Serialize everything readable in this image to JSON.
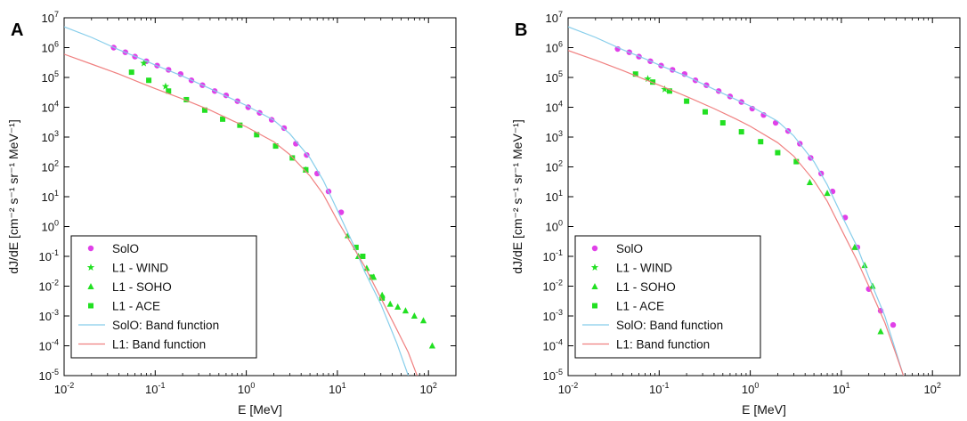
{
  "chart_data": [
    {
      "type": "scatter",
      "panel_label": "A",
      "xlabel": "E [MeV]",
      "ylabel": "dJ/dE [cm⁻² s⁻¹ sr⁻¹ MeV⁻¹]",
      "x_scale": "log",
      "y_scale": "log",
      "xlim": [
        0.01,
        200
      ],
      "ylim": [
        1e-05,
        10000000.0
      ],
      "x_ticks": [
        {
          "v": 0.01,
          "b": "10",
          "e": "-2"
        },
        {
          "v": 0.1,
          "b": "10",
          "e": "-1"
        },
        {
          "v": 1,
          "b": "10",
          "e": "0"
        },
        {
          "v": 10,
          "b": "10",
          "e": "1"
        },
        {
          "v": 100,
          "b": "10",
          "e": "2"
        }
      ],
      "y_ticks": [
        {
          "v": 1e-05,
          "b": "10",
          "e": "-5"
        },
        {
          "v": 0.0001,
          "b": "10",
          "e": "-4"
        },
        {
          "v": 0.001,
          "b": "10",
          "e": "-3"
        },
        {
          "v": 0.01,
          "b": "10",
          "e": "-2"
        },
        {
          "v": 0.1,
          "b": "10",
          "e": "-1"
        },
        {
          "v": 1,
          "b": "10",
          "e": "0"
        },
        {
          "v": 10,
          "b": "10",
          "e": "1"
        },
        {
          "v": 100,
          "b": "10",
          "e": "2"
        },
        {
          "v": 1000.0,
          "b": "10",
          "e": "3"
        },
        {
          "v": 10000.0,
          "b": "10",
          "e": "4"
        },
        {
          "v": 100000.0,
          "b": "10",
          "e": "5"
        },
        {
          "v": 1000000.0,
          "b": "10",
          "e": "6"
        },
        {
          "v": 10000000.0,
          "b": "10",
          "e": "7"
        }
      ],
      "grid": false,
      "legend_position": "bottom-left",
      "series": [
        {
          "name": "SolO",
          "marker": "circle",
          "color": "#e040e8",
          "x": [
            0.035,
            0.047,
            0.06,
            0.08,
            0.105,
            0.14,
            0.19,
            0.25,
            0.33,
            0.45,
            0.6,
            0.8,
            1.05,
            1.4,
            1.9,
            2.6,
            3.5,
            4.6,
            6.0,
            8.0,
            11.0
          ],
          "y": [
            1000000.0,
            700000.0,
            500000.0,
            350000.0,
            250000.0,
            180000.0,
            130000.0,
            80000.0,
            55000.0,
            35000.0,
            25000.0,
            16000.0,
            10000.0,
            6500.0,
            3800.0,
            2000.0,
            600.0,
            250.0,
            60.0,
            15.0,
            3.0
          ]
        },
        {
          "name": "L1 - WIND",
          "marker": "star",
          "color": "#22e022",
          "x": [
            0.075,
            0.13
          ],
          "y": [
            300000.0,
            50000.0
          ]
        },
        {
          "name": "L1 - SOHO",
          "marker": "triangle",
          "color": "#22e022",
          "x": [
            4.5,
            13.0,
            17.0,
            21.0,
            25.0,
            31.0,
            38.0,
            46.0,
            56.0,
            70.0,
            88.0,
            110.0
          ],
          "y": [
            80.0,
            0.5,
            0.1,
            0.04,
            0.02,
            0.005,
            0.0025,
            0.002,
            0.0015,
            0.001,
            0.0007,
            0.0001
          ]
        },
        {
          "name": "L1 - ACE",
          "marker": "square",
          "color": "#22e022",
          "x": [
            0.055,
            0.085,
            0.14,
            0.22,
            0.35,
            0.55,
            0.85,
            1.3,
            2.1,
            3.2,
            4.5,
            16.0,
            19.0,
            24.0,
            31.0
          ],
          "y": [
            150000.0,
            80000.0,
            35000.0,
            18000.0,
            8000.0,
            4000.0,
            2500.0,
            1200.0,
            500.0,
            200.0,
            80.0,
            0.2,
            0.1,
            0.02,
            0.004
          ]
        },
        {
          "name": "SolO: Band function",
          "marker": "line",
          "color": "#87ceeb",
          "x": [
            0.01,
            0.02,
            0.04,
            0.07,
            0.1,
            0.2,
            0.4,
            0.7,
            1.0,
            2.0,
            3.0,
            5.0,
            7.0,
            10.0,
            15.0,
            20.0,
            30.0,
            45.0,
            60.0
          ],
          "y": [
            5000000.0,
            2200000.0,
            850000.0,
            420000.0,
            260000.0,
            110000.0,
            42000.0,
            19000.0,
            11500.0,
            3700.0,
            1300.0,
            200.0,
            35.0,
            3.5,
            0.25,
            0.03,
            0.0025,
            0.00012,
            1e-05
          ]
        },
        {
          "name": "L1: Band function",
          "marker": "line",
          "color": "#f08080",
          "x": [
            0.01,
            0.02,
            0.04,
            0.07,
            0.1,
            0.2,
            0.4,
            0.7,
            1.0,
            2.0,
            3.0,
            5.0,
            7.0,
            10.0,
            15.0,
            20.0,
            30.0,
            45.0,
            60.0,
            75.0
          ],
          "y": [
            600000.0,
            280000.0,
            130000.0,
            65000.0,
            42000.0,
            19000.0,
            8000.0,
            3600.0,
            2200.0,
            700.0,
            260.0,
            50.0,
            12.0,
            1.6,
            0.2,
            0.045,
            0.004,
            0.00035,
            6e-05,
            1e-05
          ]
        }
      ]
    },
    {
      "type": "scatter",
      "panel_label": "B",
      "xlabel": "E [MeV]",
      "ylabel": "dJ/dE [cm⁻² s⁻¹ sr⁻¹ MeV⁻¹]",
      "x_scale": "log",
      "y_scale": "log",
      "xlim": [
        0.01,
        200
      ],
      "ylim": [
        1e-05,
        10000000.0
      ],
      "x_ticks": [
        {
          "v": 0.01,
          "b": "10",
          "e": "-2"
        },
        {
          "v": 0.1,
          "b": "10",
          "e": "-1"
        },
        {
          "v": 1,
          "b": "10",
          "e": "0"
        },
        {
          "v": 10,
          "b": "10",
          "e": "1"
        },
        {
          "v": 100,
          "b": "10",
          "e": "2"
        }
      ],
      "y_ticks": [
        {
          "v": 1e-05,
          "b": "10",
          "e": "-5"
        },
        {
          "v": 0.0001,
          "b": "10",
          "e": "-4"
        },
        {
          "v": 0.001,
          "b": "10",
          "e": "-3"
        },
        {
          "v": 0.01,
          "b": "10",
          "e": "-2"
        },
        {
          "v": 0.1,
          "b": "10",
          "e": "-1"
        },
        {
          "v": 1,
          "b": "10",
          "e": "0"
        },
        {
          "v": 10,
          "b": "10",
          "e": "1"
        },
        {
          "v": 100,
          "b": "10",
          "e": "2"
        },
        {
          "v": 1000.0,
          "b": "10",
          "e": "3"
        },
        {
          "v": 10000.0,
          "b": "10",
          "e": "4"
        },
        {
          "v": 100000.0,
          "b": "10",
          "e": "5"
        },
        {
          "v": 1000000.0,
          "b": "10",
          "e": "6"
        },
        {
          "v": 10000000.0,
          "b": "10",
          "e": "7"
        }
      ],
      "grid": false,
      "legend_position": "bottom-left",
      "series": [
        {
          "name": "SolO",
          "marker": "circle",
          "color": "#e040e8",
          "x": [
            0.035,
            0.047,
            0.06,
            0.08,
            0.105,
            0.14,
            0.19,
            0.25,
            0.33,
            0.45,
            0.6,
            0.8,
            1.05,
            1.4,
            1.9,
            2.6,
            3.5,
            4.6,
            6.0,
            8.0,
            11.0,
            15.0,
            20.0,
            27.0,
            37.0
          ],
          "y": [
            900000.0,
            700000.0,
            500000.0,
            350000.0,
            250000.0,
            180000.0,
            130000.0,
            80000.0,
            55000.0,
            35000.0,
            23000.0,
            15000.0,
            9000.0,
            5500.0,
            3000.0,
            1600.0,
            600.0,
            200.0,
            60.0,
            15.0,
            2.0,
            0.2,
            0.008,
            0.0015,
            0.0005
          ]
        },
        {
          "name": "L1 - WIND",
          "marker": "star",
          "color": "#22e022",
          "x": [
            0.075,
            0.115
          ],
          "y": [
            90000.0,
            40000.0
          ]
        },
        {
          "name": "L1 - SOHO",
          "marker": "triangle",
          "color": "#22e022",
          "x": [
            4.5,
            7.0,
            14.0,
            18.0,
            22.0,
            27.0
          ],
          "y": [
            30.0,
            13.0,
            0.2,
            0.05,
            0.01,
            0.0003
          ]
        },
        {
          "name": "L1 - ACE",
          "marker": "square",
          "color": "#22e022",
          "x": [
            0.055,
            0.085,
            0.13,
            0.2,
            0.32,
            0.5,
            0.8,
            1.3,
            2.0,
            3.2
          ],
          "y": [
            130000.0,
            70000.0,
            35000.0,
            16000.0,
            7000.0,
            3000.0,
            1500.0,
            700.0,
            300.0,
            150.0
          ]
        },
        {
          "name": "SolO: Band function",
          "marker": "line",
          "color": "#87ceeb",
          "x": [
            0.01,
            0.02,
            0.04,
            0.07,
            0.1,
            0.2,
            0.4,
            0.7,
            1.0,
            2.0,
            3.0,
            5.0,
            7.0,
            10.0,
            15.0,
            20.0,
            30.0,
            40.0,
            48.0
          ],
          "y": [
            5000000.0,
            2200000.0,
            850000.0,
            420000.0,
            260000.0,
            110000.0,
            40000.0,
            18000.0,
            11000.0,
            3400.0,
            1100.0,
            150.0,
            25.0,
            2.5,
            0.2,
            0.02,
            0.001,
            6e-05,
            1e-05
          ]
        },
        {
          "name": "L1: Band function",
          "marker": "line",
          "color": "#f08080",
          "x": [
            0.01,
            0.02,
            0.04,
            0.07,
            0.1,
            0.2,
            0.4,
            0.7,
            1.0,
            2.0,
            3.0,
            5.0,
            7.0,
            10.0,
            15.0,
            20.0,
            30.0,
            40.0,
            48.0
          ],
          "y": [
            800000.0,
            380000.0,
            170000.0,
            85000.0,
            55000.0,
            23000.0,
            9000.0,
            4000.0,
            2300.0,
            650.0,
            230.0,
            35.0,
            7.0,
            0.8,
            0.07,
            0.01,
            0.0006,
            5e-05,
            1e-05
          ]
        }
      ]
    }
  ]
}
